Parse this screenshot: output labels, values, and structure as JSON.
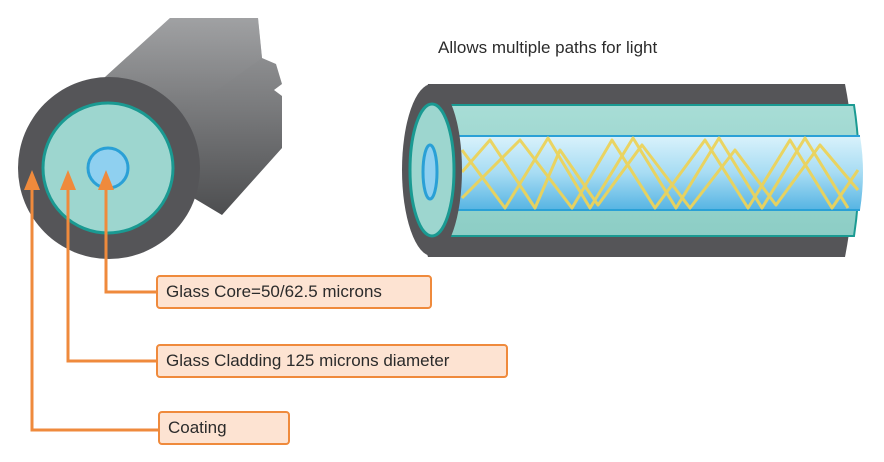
{
  "caption": "Allows multiple paths for light",
  "labels": {
    "core": "Glass Core=50/62.5 microns",
    "cladding": "Glass Cladding 125 microns diameter",
    "coating": "Coating"
  },
  "colors": {
    "coating_dark": "#555558",
    "jacket_gray": "#8e8f91",
    "cladding": "#9dd6cf",
    "cladding_edge": "#1a9a92",
    "core": "#8fd0f0",
    "core_edge": "#2aa0d6",
    "light_path": "#ecd35a",
    "callout": "#ef8a3c",
    "callout_fill": "#fde3d2"
  }
}
